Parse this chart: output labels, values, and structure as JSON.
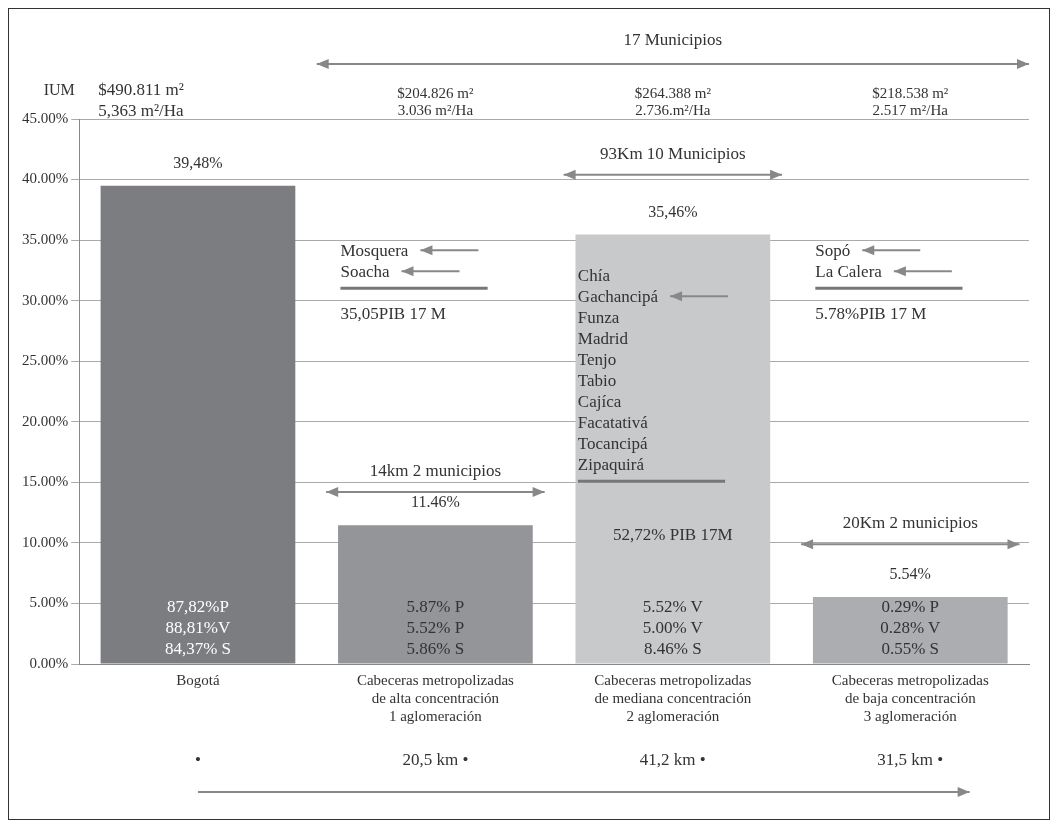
{
  "chart_data": {
    "type": "bar",
    "ylabel": "IUM",
    "categories": [
      "Bogotá",
      "Cabeceras metropolizadas\nde alta concentración\n1 aglomeración",
      "Cabeceras metropolizadas\nde mediana concentración\n2 aglomeración",
      "Cabeceras metropolizadas\nde baja concentración\n3 aglomeración"
    ],
    "values": [
      39.48,
      11.46,
      35.46,
      5.54
    ],
    "colors": [
      "#7c7d80",
      "#949598",
      "#c8c9cb",
      "#acadb0"
    ],
    "value_labels": [
      "39,48%",
      "11.46%",
      "35,46%",
      "5.54%"
    ],
    "ylim": [
      0,
      45
    ],
    "yticks": [
      {
        "value": 0,
        "label": "0.00%"
      },
      {
        "value": 5,
        "label": "5.00%"
      },
      {
        "value": 10,
        "label": "10.00%"
      },
      {
        "value": 15,
        "label": "15.00%"
      },
      {
        "value": 20,
        "label": "20.00%"
      },
      {
        "value": 25,
        "label": "25.00%"
      },
      {
        "value": 30,
        "label": "30.00%"
      },
      {
        "value": 35,
        "label": "35.00%"
      },
      {
        "value": 40,
        "label": "40.00%"
      },
      {
        "value": 45,
        "label": "45.00%"
      }
    ],
    "grid": "y",
    "legend": false,
    "annotations": [
      "$490.811 m²\n5,363 m²/Ha",
      "17 Municipios",
      "$204.826 m²\n3.036 m²/Ha",
      "$264.388 m²\n2.736.m²/Ha",
      "$218.538 m²\n2.517 m²/Ha",
      "•",
      "20,5 km •",
      "41,2 km •",
      "31,5 km •",
      "14km 2 municipios",
      "Mosquera\nSoacha",
      "35,05PIB 17 M",
      "93Km 10 Municipios",
      "Chía\nGachancipá\nFunza\nMadrid\nTenjo\nTabio\nCajíca\nFacatativá\nTocancipá\nZipaquirá",
      "52,72% PIB 17M",
      "Sopó\nLa Calera",
      "5.78%PIB 17 M",
      "20Km 2 municipios",
      "87,82%P\n88,81%V\n84,37% S",
      "5.87% P\n5.52% P\n5.86% S",
      "5.52% V\n5.00% V\n8.46% S",
      "0.29% P\n0.28% V\n0.55% S"
    ]
  }
}
